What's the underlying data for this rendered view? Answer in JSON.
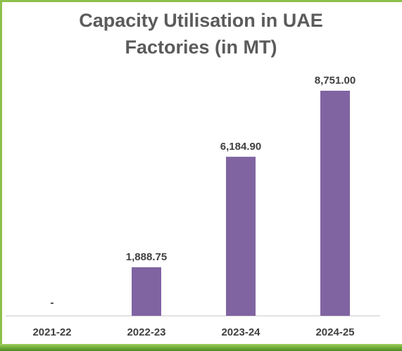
{
  "chart_data": {
    "type": "bar",
    "title_lines": [
      "Capacity Utilisation in UAE",
      "Factories (in MT)"
    ],
    "categories": [
      "2021-22",
      "2022-23",
      "2023-24",
      "2024-25"
    ],
    "values": [
      0,
      1888.75,
      6184.9,
      8751.0
    ],
    "data_labels": [
      "-",
      "1,888.75",
      "6,184.90",
      "8,751.00"
    ],
    "xlabel": "",
    "ylabel": "",
    "ylim": [
      0,
      8751
    ],
    "grid": false,
    "legend": "none",
    "colors": {
      "bar": "#8064a2",
      "axis": "#d9d9d9",
      "title": "#5b5b5b",
      "label": "#404040"
    }
  }
}
